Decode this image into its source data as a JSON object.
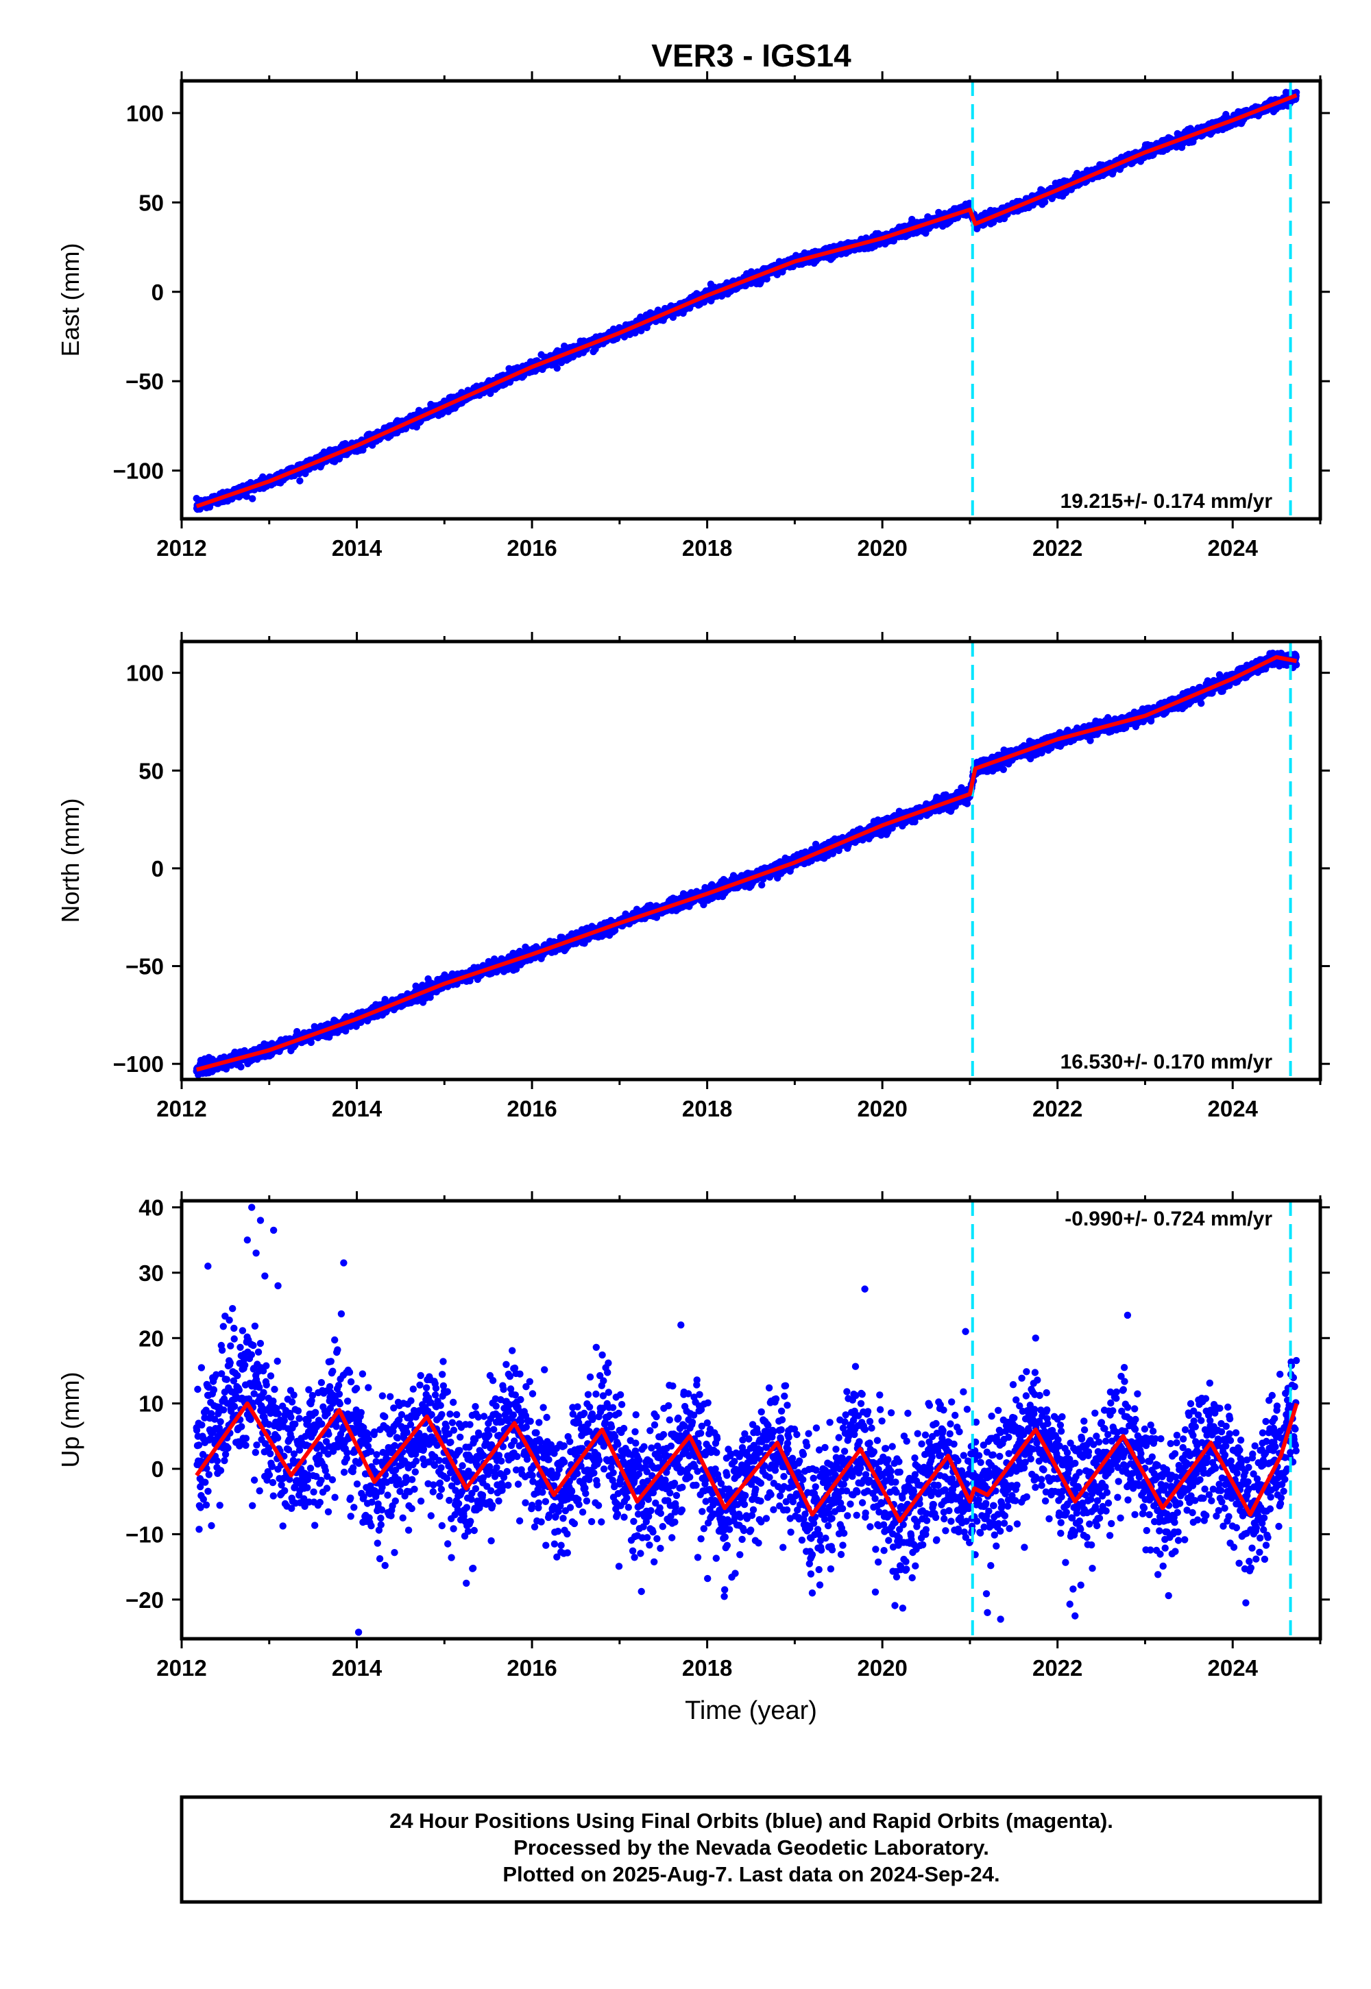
{
  "figure": {
    "title": "VER3 - IGS14",
    "footer_lines": [
      "24 Hour Positions Using Final Orbits (blue) and Rapid Orbits (magenta).",
      "Processed by the Nevada Geodetic Laboratory.",
      "Plotted on 2025-Aug-7. Last data on 2024-Sep-24."
    ],
    "colors": {
      "points": "#0000ff",
      "model": "#ff0000",
      "offset_lines": "#00e5ff",
      "axes": "#000000"
    }
  },
  "chart_data": [
    {
      "type": "scatter",
      "component": "east",
      "ylabel": "East (mm)",
      "xlabel": "",
      "xlim": [
        2012.0,
        2025.0
      ],
      "ylim": [
        -127,
        118
      ],
      "x_ticks": [
        2012,
        2014,
        2016,
        2018,
        2020,
        2022,
        2024
      ],
      "y_ticks": [
        -100,
        -50,
        0,
        50,
        100
      ],
      "rate_label": "19.215+/- 0.174 mm/yr",
      "rate_position": "bottom-right",
      "offset_epochs": [
        2021.03,
        2024.66
      ],
      "data_start": 2012.17,
      "data_end": 2024.73,
      "points_sampled_from_model": true,
      "scatter_sd_mm": 1.6,
      "model": {
        "x": [
          2012.17,
          2013.0,
          2014.0,
          2015.0,
          2016.0,
          2017.0,
          2018.0,
          2019.0,
          2020.0,
          2021.0,
          2021.06,
          2022.0,
          2023.0,
          2024.0,
          2024.73
        ],
        "y": [
          -120,
          -106,
          -86,
          -64,
          -42,
          -23,
          -2,
          17,
          30,
          46,
          38,
          57,
          78,
          96,
          110
        ]
      }
    },
    {
      "type": "scatter",
      "component": "north",
      "ylabel": "North (mm)",
      "xlabel": "",
      "xlim": [
        2012.0,
        2025.0
      ],
      "ylim": [
        -108,
        116
      ],
      "x_ticks": [
        2012,
        2014,
        2016,
        2018,
        2020,
        2022,
        2024
      ],
      "y_ticks": [
        -100,
        -50,
        0,
        50,
        100
      ],
      "rate_label": "16.530+/- 0.170 mm/yr",
      "rate_position": "bottom-right",
      "offset_epochs": [
        2021.03,
        2024.66
      ],
      "data_start": 2012.17,
      "data_end": 2024.73,
      "points_sampled_from_model": true,
      "scatter_sd_mm": 1.6,
      "model": {
        "x": [
          2012.17,
          2013.0,
          2014.0,
          2015.0,
          2016.0,
          2017.0,
          2018.0,
          2019.0,
          2020.0,
          2021.0,
          2021.06,
          2022.0,
          2023.0,
          2024.0,
          2024.5,
          2024.73
        ],
        "y": [
          -103,
          -93,
          -77,
          -59,
          -44,
          -28,
          -13,
          3,
          22,
          38,
          51,
          66,
          78,
          97,
          108,
          106
        ]
      }
    },
    {
      "type": "scatter",
      "component": "up",
      "ylabel": "Up (mm)",
      "xlabel": "Time (year)",
      "xlim": [
        2012.0,
        2025.0
      ],
      "ylim": [
        -26,
        41
      ],
      "x_ticks": [
        2012,
        2014,
        2016,
        2018,
        2020,
        2022,
        2024
      ],
      "y_ticks": [
        -20,
        -10,
        0,
        10,
        20,
        30,
        40
      ],
      "rate_label": "-0.990+/- 0.724 mm/yr",
      "rate_position": "top-right",
      "offset_epochs": [
        2021.03,
        2024.66
      ],
      "data_start": 2012.17,
      "data_end": 2024.73,
      "points_sampled_from_model": true,
      "scatter_sd_mm": 5.0,
      "model": {
        "x": [
          2012.17,
          2012.75,
          2013.25,
          2013.8,
          2014.2,
          2014.8,
          2015.25,
          2015.8,
          2016.25,
          2016.8,
          2017.2,
          2017.8,
          2018.2,
          2018.8,
          2019.2,
          2019.75,
          2020.2,
          2020.75,
          2021.0,
          2021.05,
          2021.2,
          2021.75,
          2022.2,
          2022.75,
          2023.2,
          2023.75,
          2024.2,
          2024.55,
          2024.73
        ],
        "y": [
          -1,
          10,
          -1,
          9,
          -2,
          8,
          -3,
          7,
          -4,
          6,
          -5,
          5,
          -6,
          4,
          -7,
          3,
          -8,
          2,
          -5,
          -3,
          -4,
          6,
          -5,
          5,
          -6,
          4,
          -7,
          2,
          10
        ]
      },
      "outliers": [
        {
          "x": 2012.8,
          "y": 40
        },
        {
          "x": 2012.9,
          "y": 38
        },
        {
          "x": 2013.05,
          "y": 36.5
        },
        {
          "x": 2012.75,
          "y": 35
        },
        {
          "x": 2012.85,
          "y": 33
        },
        {
          "x": 2012.3,
          "y": 31
        },
        {
          "x": 2013.85,
          "y": 31.5
        },
        {
          "x": 2013.1,
          "y": 28
        },
        {
          "x": 2012.95,
          "y": 29.5
        },
        {
          "x": 2019.8,
          "y": 27.5
        },
        {
          "x": 2022.8,
          "y": 23.5
        },
        {
          "x": 2017.7,
          "y": 22
        },
        {
          "x": 2021.75,
          "y": 20
        },
        {
          "x": 2020.95,
          "y": 21
        },
        {
          "x": 2014.02,
          "y": -25
        },
        {
          "x": 2022.2,
          "y": -22.5
        },
        {
          "x": 2021.35,
          "y": -23
        },
        {
          "x": 2015.25,
          "y": -17.5
        },
        {
          "x": 2018.2,
          "y": -18.5
        },
        {
          "x": 2019.2,
          "y": -19
        },
        {
          "x": 2024.15,
          "y": -20.5
        },
        {
          "x": 2021.2,
          "y": -22
        }
      ]
    }
  ]
}
